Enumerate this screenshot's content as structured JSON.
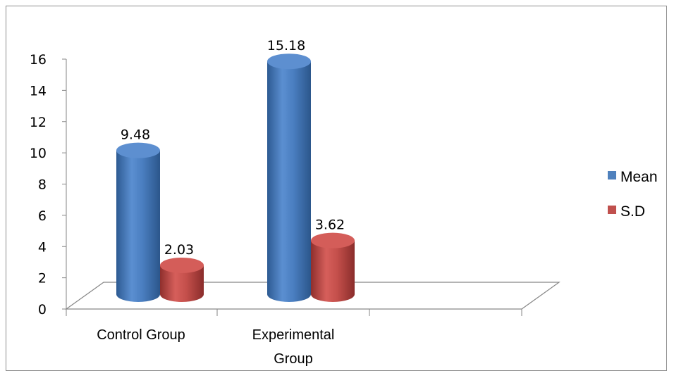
{
  "chart_data": {
    "type": "bar",
    "title": "",
    "xlabel": "",
    "ylabel": "",
    "categories": [
      "Control Group",
      "Experimental Group"
    ],
    "category_lines": [
      [
        "Control Group"
      ],
      [
        "Experimental",
        "Group"
      ]
    ],
    "series": [
      {
        "name": "Mean",
        "values": [
          9.48,
          15.18
        ],
        "color": "#4f81bd",
        "labels": [
          "9.48",
          "15.18"
        ]
      },
      {
        "name": "S.D",
        "values": [
          2.03,
          3.62
        ],
        "color": "#c0504d",
        "labels": [
          "2.03",
          "3.62"
        ]
      }
    ],
    "ylim": [
      0,
      16
    ],
    "yticks": [
      "0",
      "2",
      "4",
      "6",
      "8",
      "10",
      "12",
      "14",
      "16"
    ],
    "grid": false,
    "legend_position": "right"
  }
}
